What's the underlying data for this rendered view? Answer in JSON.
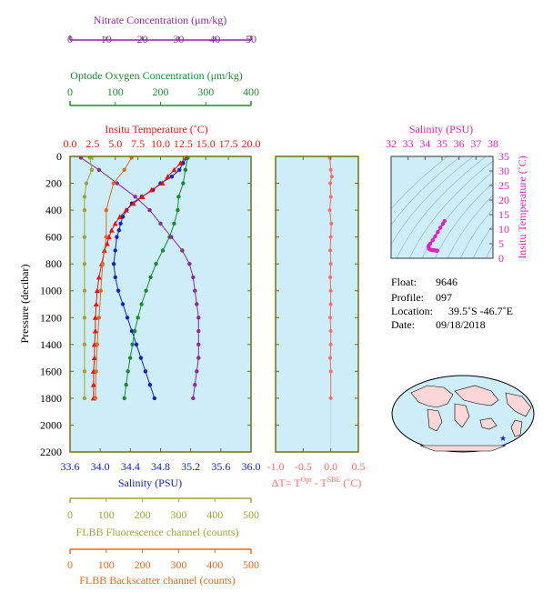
{
  "colors": {
    "panel_bg": "#cdeef8",
    "nitrate": "#8b2a9e",
    "oxygen": "#1b8a2e",
    "temperature": "#e8140c",
    "salinity": "#1222c8",
    "fluorescence": "#a2a235",
    "backscatter": "#e06a1a",
    "delta_t": "#ff6b6b",
    "ts_magenta": "#e020c0",
    "frame": "#707010"
  },
  "axes": {
    "nitrate": {
      "label": "Nitrate Concentration (μm/kg)",
      "range": [
        0,
        50
      ],
      "ticks": [
        "0",
        "10",
        "20",
        "30",
        "40",
        "50"
      ]
    },
    "oxygen": {
      "label": "Optode Oxygen Concentration (μm/kg)",
      "range": [
        0,
        400
      ],
      "ticks": [
        "0",
        "100",
        "200",
        "300",
        "400"
      ]
    },
    "temperature": {
      "label": "Insitu Temperature (˚C)",
      "range": [
        0,
        20
      ],
      "ticks": [
        "0.0",
        "2.5",
        "5.0",
        "7.5",
        "10.0",
        "12.5",
        "15.0",
        "17.5",
        "20.0"
      ]
    },
    "salinity": {
      "label": "Salinity (PSU)",
      "range": [
        33.6,
        36.0
      ],
      "ticks": [
        "33.6",
        "34.0",
        "34.4",
        "34.8",
        "35.2",
        "35.6",
        "36.0"
      ]
    },
    "pressure": {
      "label": "Pressure (decibar)",
      "range": [
        0,
        2200
      ],
      "ticks": [
        "0",
        "200",
        "400",
        "600",
        "800",
        "1000",
        "1200",
        "1400",
        "1600",
        "1800",
        "2000",
        "2200"
      ]
    },
    "fluorescence": {
      "label": "FLBB Fluorescence channel (counts)",
      "range": [
        0,
        500
      ],
      "ticks": [
        "0",
        "100",
        "200",
        "300",
        "400",
        "500"
      ]
    },
    "backscatter": {
      "label": "FLBB Backscatter channel (counts)",
      "range": [
        0,
        500
      ],
      "ticks": [
        "0",
        "100",
        "200",
        "300",
        "400",
        "500"
      ]
    },
    "delta_t": {
      "label_prefix": "ΔT= T",
      "label_sup1": "Opt",
      "label_mid": " - T",
      "label_sup2": "SBE",
      "label_suffix": " (˚C)",
      "range": [
        -1.0,
        0.5
      ],
      "ticks": [
        "-1.0",
        "-0.5",
        "0.0",
        "0.5"
      ]
    },
    "ts_salinity": {
      "label": "Salinity (PSU)",
      "range": [
        32,
        38
      ],
      "ticks": [
        "32",
        "33",
        "34",
        "35",
        "36",
        "37",
        "38"
      ]
    },
    "ts_temperature": {
      "label": "Insitu Temperature (˚C)",
      "range": [
        0,
        35
      ],
      "ticks": [
        "0",
        "5",
        "10",
        "15",
        "20",
        "25",
        "30",
        "35"
      ]
    }
  },
  "info": {
    "float_label": "Float:",
    "float_value": "9646",
    "profile_label": "Profile:",
    "profile_value": "097",
    "location_label": "Location:",
    "location_value": "39.5˚S  -46.7˚E",
    "date_label": "Date:",
    "date_value": "09/18/2018"
  },
  "chart_data": [
    {
      "type": "line",
      "panel": "profiles",
      "ylabel": "Pressure (decibar)",
      "ylim": [
        2200,
        0
      ],
      "series": [
        {
          "name": "Salinity (PSU)",
          "axis": "salinity",
          "color": "#1222c8",
          "points": [
            [
              35.15,
              10
            ],
            [
              35.1,
              50
            ],
            [
              35.05,
              100
            ],
            [
              34.95,
              150
            ],
            [
              34.8,
              200
            ],
            [
              34.7,
              250
            ],
            [
              34.55,
              300
            ],
            [
              34.42,
              350
            ],
            [
              34.35,
              400
            ],
            [
              34.3,
              450
            ],
            [
              34.27,
              500
            ],
            [
              34.25,
              550
            ],
            [
              34.22,
              600
            ],
            [
              34.2,
              700
            ],
            [
              34.18,
              800
            ],
            [
              34.2,
              900
            ],
            [
              34.24,
              1000
            ],
            [
              34.3,
              1100
            ],
            [
              34.36,
              1200
            ],
            [
              34.42,
              1300
            ],
            [
              34.48,
              1400
            ],
            [
              34.54,
              1500
            ],
            [
              34.6,
              1600
            ],
            [
              34.66,
              1700
            ],
            [
              34.72,
              1800
            ]
          ]
        },
        {
          "name": "Insitu Temperature (˚C)",
          "axis": "temperature",
          "color": "#e8140c",
          "points": [
            [
              12.8,
              10
            ],
            [
              12.2,
              50
            ],
            [
              11.5,
              100
            ],
            [
              10.8,
              150
            ],
            [
              10.2,
              200
            ],
            [
              9.0,
              250
            ],
            [
              8.0,
              300
            ],
            [
              7.0,
              350
            ],
            [
              6.2,
              400
            ],
            [
              5.5,
              450
            ],
            [
              5.0,
              500
            ],
            [
              4.6,
              550
            ],
            [
              4.3,
              600
            ],
            [
              4.1,
              650
            ],
            [
              3.8,
              700
            ],
            [
              3.5,
              800
            ],
            [
              3.2,
              900
            ],
            [
              3.0,
              1000
            ],
            [
              2.9,
              1100
            ],
            [
              2.8,
              1200
            ],
            [
              2.8,
              1300
            ],
            [
              2.7,
              1400
            ],
            [
              2.7,
              1500
            ],
            [
              2.6,
              1600
            ],
            [
              2.6,
              1700
            ],
            [
              2.6,
              1800
            ]
          ]
        },
        {
          "name": "Optode Oxygen Concentration (μm/kg)",
          "axis": "oxygen",
          "color": "#1b8a2e",
          "points": [
            [
              260,
              10
            ],
            [
              255,
              100
            ],
            [
              250,
              200
            ],
            [
              240,
              300
            ],
            [
              238,
              400
            ],
            [
              230,
              500
            ],
            [
              220,
              600
            ],
            [
              205,
              700
            ],
            [
              190,
              800
            ],
            [
              178,
              900
            ],
            [
              168,
              1000
            ],
            [
              158,
              1100
            ],
            [
              150,
              1200
            ],
            [
              143,
              1300
            ],
            [
              138,
              1400
            ],
            [
              133,
              1500
            ],
            [
              128,
              1600
            ],
            [
              124,
              1700
            ],
            [
              120,
              1800
            ]
          ]
        },
        {
          "name": "Nitrate Concentration (μm/kg)",
          "axis": "nitrate",
          "color": "#8b2a9e",
          "points": [
            [
              3,
              10
            ],
            [
              8,
              100
            ],
            [
              13,
              200
            ],
            [
              18,
              300
            ],
            [
              22,
              400
            ],
            [
              25,
              500
            ],
            [
              28,
              600
            ],
            [
              31,
              700
            ],
            [
              33,
              800
            ],
            [
              34,
              900
            ],
            [
              34.5,
              1000
            ],
            [
              35,
              1100
            ],
            [
              35.5,
              1200
            ],
            [
              35.5,
              1300
            ],
            [
              35.5,
              1400
            ],
            [
              35.5,
              1500
            ],
            [
              35,
              1600
            ],
            [
              34.5,
              1700
            ],
            [
              34,
              1800
            ]
          ]
        },
        {
          "name": "FLBB Fluorescence channel (counts)",
          "axis": "fluorescence",
          "color": "#a2a235",
          "points": [
            [
              55,
              10
            ],
            [
              60,
              100
            ],
            [
              45,
              200
            ],
            [
              40,
              300
            ],
            [
              40,
              400
            ],
            [
              40,
              600
            ],
            [
              40,
              800
            ],
            [
              40,
              1000
            ],
            [
              40,
              1200
            ],
            [
              40,
              1400
            ],
            [
              40,
              1600
            ],
            [
              40,
              1800
            ]
          ]
        },
        {
          "name": "FLBB Backscatter channel (counts)",
          "axis": "backscatter",
          "color": "#e06a1a",
          "points": [
            [
              170,
              10
            ],
            [
              150,
              100
            ],
            [
              120,
              200
            ],
            [
              100,
              400
            ],
            [
              100,
              600
            ],
            [
              90,
              800
            ],
            [
              85,
              1000
            ],
            [
              80,
              1200
            ],
            [
              75,
              1400
            ],
            [
              72,
              1600
            ],
            [
              70,
              1800
            ]
          ]
        }
      ]
    },
    {
      "type": "scatter",
      "panel": "delta_t",
      "xlabel": "ΔT= T Opt - T SBE (˚C)",
      "xlim": [
        -1.0,
        0.5
      ],
      "ylim": [
        2200,
        0
      ],
      "x": [
        -0.02,
        0.0,
        0.02,
        -0.01,
        0.0,
        -0.02,
        0.01,
        0.0,
        -0.01,
        0.0,
        -0.01,
        0.0,
        0.0,
        -0.01,
        0.0,
        0.0,
        -0.01,
        0.0,
        0.0
      ],
      "y": [
        10,
        100,
        150,
        200,
        300,
        400,
        500,
        600,
        700,
        800,
        900,
        1000,
        1100,
        1200,
        1300,
        1400,
        1500,
        1600,
        1800
      ]
    },
    {
      "type": "scatter",
      "panel": "ts_diagram",
      "xlabel": "Salinity (PSU)",
      "ylabel": "Insitu Temperature (˚C)",
      "xlim": [
        32,
        38
      ],
      "ylim": [
        0,
        35
      ],
      "x": [
        34.72,
        34.66,
        34.6,
        34.54,
        34.48,
        34.42,
        34.36,
        34.3,
        34.24,
        34.2,
        34.22,
        34.3,
        34.45,
        34.6,
        34.75,
        34.9,
        35.05,
        35.15
      ],
      "y": [
        2.6,
        2.6,
        2.7,
        2.7,
        2.8,
        2.8,
        2.9,
        3.0,
        3.2,
        3.8,
        4.3,
        5.0,
        6.2,
        7.5,
        9.0,
        10.5,
        11.8,
        12.8
      ]
    }
  ]
}
